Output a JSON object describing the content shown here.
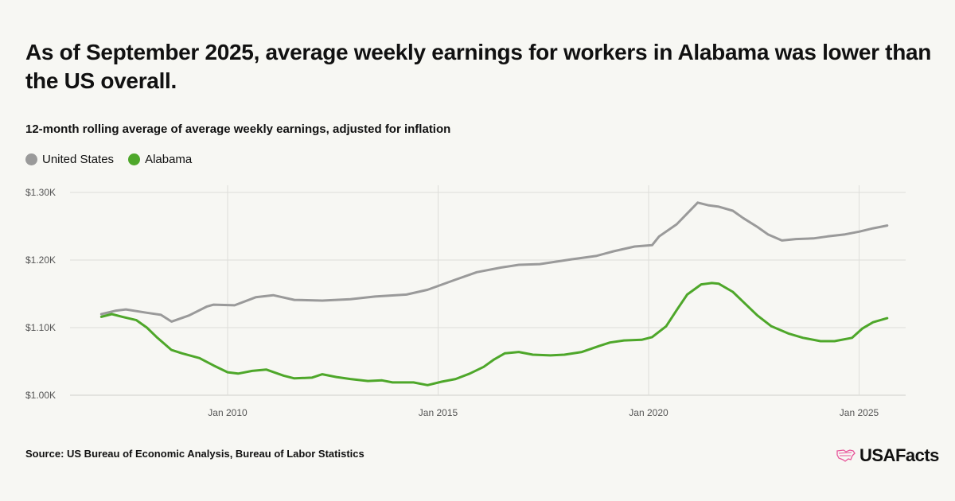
{
  "header": {
    "title": "As of September 2025, average weekly earnings for workers in Alabama was lower than the US overall.",
    "subtitle": "12-month rolling average of average weekly earnings, adjusted for inflation"
  },
  "footer": {
    "source": "Source: US Bureau of Economic Analysis, Bureau of Labor Statistics",
    "logo_text": "USAFacts"
  },
  "chart_data": {
    "type": "line",
    "title": "As of September 2025, average weekly earnings for workers in Alabama was lower than the US overall.",
    "subtitle": "12-month rolling average of average weekly earnings, adjusted for inflation",
    "xlabel": "",
    "ylabel": "",
    "ylim": [
      1000,
      1300
    ],
    "xlim": [
      "2006-04",
      "2026-02"
    ],
    "grid": true,
    "legend": "top-left",
    "y_ticks": [
      {
        "value": 1000,
        "label": "$1.00K"
      },
      {
        "value": 1100,
        "label": "$1.10K"
      },
      {
        "value": 1200,
        "label": "$1.20K"
      },
      {
        "value": 1300,
        "label": "$1.30K"
      }
    ],
    "x_ticks": [
      {
        "value": "2010-01",
        "label": "Jan 2010"
      },
      {
        "value": "2015-01",
        "label": "Jan 2015"
      },
      {
        "value": "2020-01",
        "label": "Jan 2020"
      },
      {
        "value": "2025-01",
        "label": "Jan 2025"
      }
    ],
    "series": [
      {
        "name": "United States",
        "color": "#9a9a9a",
        "points": [
          [
            "2007-01",
            1120
          ],
          [
            "2007-05",
            1125
          ],
          [
            "2007-08",
            1127
          ],
          [
            "2008-02",
            1122
          ],
          [
            "2008-06",
            1119
          ],
          [
            "2008-09",
            1109
          ],
          [
            "2009-02",
            1118
          ],
          [
            "2009-07",
            1131
          ],
          [
            "2009-09",
            1134
          ],
          [
            "2010-03",
            1133
          ],
          [
            "2010-09",
            1145
          ],
          [
            "2011-02",
            1148
          ],
          [
            "2011-08",
            1141
          ],
          [
            "2012-04",
            1140
          ],
          [
            "2012-12",
            1142
          ],
          [
            "2013-07",
            1146
          ],
          [
            "2014-04",
            1149
          ],
          [
            "2014-10",
            1156
          ],
          [
            "2015-06",
            1171
          ],
          [
            "2015-12",
            1182
          ],
          [
            "2016-07",
            1189
          ],
          [
            "2016-12",
            1193
          ],
          [
            "2017-06",
            1194
          ],
          [
            "2018-03",
            1201
          ],
          [
            "2018-10",
            1206
          ],
          [
            "2019-03",
            1213
          ],
          [
            "2019-09",
            1220
          ],
          [
            "2020-02",
            1222
          ],
          [
            "2020-04",
            1235
          ],
          [
            "2020-09",
            1253
          ],
          [
            "2020-12",
            1269
          ],
          [
            "2021-03",
            1285
          ],
          [
            "2021-06",
            1281
          ],
          [
            "2021-09",
            1279
          ],
          [
            "2022-01",
            1273
          ],
          [
            "2022-04",
            1262
          ],
          [
            "2022-08",
            1249
          ],
          [
            "2022-11",
            1238
          ],
          [
            "2023-03",
            1229
          ],
          [
            "2023-07",
            1231
          ],
          [
            "2023-12",
            1232
          ],
          [
            "2024-04",
            1235
          ],
          [
            "2024-09",
            1238
          ],
          [
            "2025-01",
            1242
          ],
          [
            "2025-05",
            1247
          ],
          [
            "2025-09",
            1251
          ]
        ]
      },
      {
        "name": "Alabama",
        "color": "#4ea72a",
        "points": [
          [
            "2007-01",
            1116
          ],
          [
            "2007-04",
            1120
          ],
          [
            "2007-07",
            1116
          ],
          [
            "2007-11",
            1111
          ],
          [
            "2008-02",
            1100
          ],
          [
            "2008-05",
            1085
          ],
          [
            "2008-09",
            1067
          ],
          [
            "2008-12",
            1062
          ],
          [
            "2009-05",
            1055
          ],
          [
            "2009-09",
            1044
          ],
          [
            "2010-01",
            1034
          ],
          [
            "2010-04",
            1032
          ],
          [
            "2010-08",
            1036
          ],
          [
            "2010-12",
            1038
          ],
          [
            "2011-05",
            1029
          ],
          [
            "2011-08",
            1025
          ],
          [
            "2012-01",
            1026
          ],
          [
            "2012-04",
            1031
          ],
          [
            "2012-08",
            1027
          ],
          [
            "2012-12",
            1024
          ],
          [
            "2013-05",
            1021
          ],
          [
            "2013-09",
            1022
          ],
          [
            "2013-12",
            1019
          ],
          [
            "2014-06",
            1019
          ],
          [
            "2014-10",
            1015
          ],
          [
            "2015-02",
            1020
          ],
          [
            "2015-06",
            1024
          ],
          [
            "2015-10",
            1032
          ],
          [
            "2016-02",
            1042
          ],
          [
            "2016-05",
            1053
          ],
          [
            "2016-08",
            1062
          ],
          [
            "2016-12",
            1064
          ],
          [
            "2017-04",
            1060
          ],
          [
            "2017-09",
            1059
          ],
          [
            "2018-01",
            1060
          ],
          [
            "2018-06",
            1064
          ],
          [
            "2018-11",
            1073
          ],
          [
            "2019-02",
            1078
          ],
          [
            "2019-06",
            1081
          ],
          [
            "2019-11",
            1082
          ],
          [
            "2020-02",
            1086
          ],
          [
            "2020-06",
            1102
          ],
          [
            "2020-09",
            1126
          ],
          [
            "2020-12",
            1149
          ],
          [
            "2021-04",
            1164
          ],
          [
            "2021-07",
            1166
          ],
          [
            "2021-09",
            1165
          ],
          [
            "2022-01",
            1153
          ],
          [
            "2022-04",
            1138
          ],
          [
            "2022-08",
            1118
          ],
          [
            "2022-12",
            1102
          ],
          [
            "2023-05",
            1091
          ],
          [
            "2023-09",
            1085
          ],
          [
            "2024-02",
            1080
          ],
          [
            "2024-06",
            1080
          ],
          [
            "2024-11",
            1085
          ],
          [
            "2025-02",
            1099
          ],
          [
            "2025-05",
            1108
          ],
          [
            "2025-09",
            1114
          ]
        ]
      }
    ]
  }
}
